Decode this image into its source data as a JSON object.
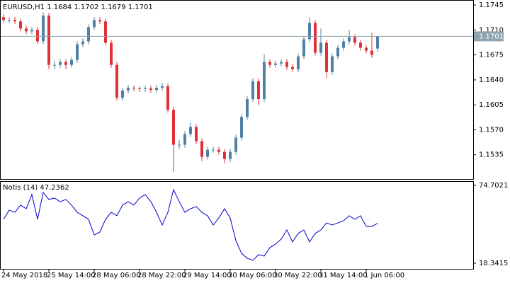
{
  "chart_data": [
    {
      "type": "candlestick",
      "title": "EURUSD,H1  1.1684 1.1702 1.1679 1.1701",
      "categories": [
        "24 May 2018",
        null,
        null,
        null,
        null,
        null,
        null,
        null,
        "25 May 14:00",
        null,
        null,
        null,
        null,
        null,
        null,
        null,
        "28 May 06:00",
        null,
        null,
        null,
        null,
        null,
        null,
        null,
        "28 May 22:00",
        null,
        null,
        null,
        null,
        null,
        null,
        null,
        "29 May 14:00",
        null,
        null,
        null,
        null,
        null,
        null,
        null,
        "30 May 06:00",
        null,
        null,
        null,
        null,
        null,
        null,
        null,
        "30 May 22:00",
        null,
        null,
        null,
        null,
        null,
        null,
        null,
        "31 May 14:00",
        null,
        null,
        null,
        null,
        null,
        null,
        null,
        "1 Jun 06:00",
        null,
        null
      ],
      "open": [
        1.1728,
        1.1724,
        1.1724,
        1.1722,
        1.1712,
        1.1708,
        1.171,
        1.1694,
        1.173,
        1.1661,
        1.1661,
        1.1665,
        1.1661,
        1.1668,
        1.169,
        1.1694,
        1.1714,
        1.1724,
        1.1722,
        1.1692,
        1.1661,
        1.1615,
        1.1625,
        1.1629,
        1.1628,
        1.1627,
        1.1628,
        1.1626,
        1.1629,
        1.1631,
        1.1598,
        1.1549,
        1.1549,
        1.1564,
        1.1574,
        1.1554,
        1.1532,
        1.1542,
        1.1542,
        1.1539,
        1.1529,
        1.1539,
        1.1559,
        1.1588,
        1.1613,
        1.1638,
        1.1613,
        1.1665,
        1.1661,
        1.1663,
        1.1665,
        1.1658,
        1.1655,
        1.1673,
        1.1697,
        1.172,
        1.1678,
        1.1692,
        1.1651,
        1.1673,
        1.1685,
        1.1694,
        1.17,
        1.1692,
        1.1685,
        1.1681,
        1.1684
      ],
      "high": [
        1.1732,
        1.1728,
        1.1728,
        1.1726,
        1.1716,
        1.1714,
        1.1714,
        1.1735,
        1.1734,
        1.1667,
        1.1669,
        1.1669,
        1.1672,
        1.1694,
        1.1698,
        1.1718,
        1.1728,
        1.1728,
        1.1726,
        1.1696,
        1.1665,
        1.1629,
        1.1633,
        1.1632,
        1.1631,
        1.1632,
        1.1632,
        1.1633,
        1.1636,
        1.1635,
        1.1602,
        1.1556,
        1.1568,
        1.158,
        1.1578,
        1.1558,
        1.1546,
        1.1546,
        1.1546,
        1.1543,
        1.1543,
        1.1563,
        1.1592,
        1.1617,
        1.1642,
        1.1642,
        1.1676,
        1.1669,
        1.1667,
        1.1669,
        1.1669,
        1.1662,
        1.1677,
        1.1701,
        1.1728,
        1.1724,
        1.1712,
        1.1696,
        1.1677,
        1.1689,
        1.1698,
        1.171,
        1.1704,
        1.1696,
        1.1689,
        1.1706,
        1.1702
      ],
      "low": [
        1.172,
        1.172,
        1.1718,
        1.1708,
        1.1704,
        1.1704,
        1.169,
        1.169,
        1.1655,
        1.1655,
        1.1657,
        1.1655,
        1.1657,
        1.1664,
        1.1686,
        1.169,
        1.171,
        1.1718,
        1.1688,
        1.1657,
        1.1611,
        1.1611,
        1.1621,
        1.1624,
        1.1623,
        1.1623,
        1.1622,
        1.1622,
        1.1625,
        1.1594,
        1.1511,
        1.1543,
        1.1545,
        1.156,
        1.155,
        1.1526,
        1.1528,
        1.1538,
        1.1535,
        1.1523,
        1.1525,
        1.1535,
        1.1555,
        1.1584,
        1.1609,
        1.1605,
        1.1609,
        1.1657,
        1.1657,
        1.1659,
        1.1654,
        1.1651,
        1.1651,
        1.1669,
        1.1693,
        1.1674,
        1.1674,
        1.1643,
        1.1647,
        1.1669,
        1.1681,
        1.169,
        1.1688,
        1.1681,
        1.1677,
        1.1671,
        1.1679
      ],
      "close": [
        1.1724,
        1.1724,
        1.1722,
        1.1712,
        1.1708,
        1.171,
        1.1694,
        1.173,
        1.1661,
        1.1661,
        1.1665,
        1.1661,
        1.1668,
        1.169,
        1.1694,
        1.1714,
        1.1724,
        1.1722,
        1.1692,
        1.1661,
        1.1615,
        1.1625,
        1.1629,
        1.1628,
        1.1627,
        1.1628,
        1.1626,
        1.1629,
        1.1631,
        1.1598,
        1.1549,
        1.1549,
        1.1564,
        1.1574,
        1.1554,
        1.1532,
        1.1542,
        1.1542,
        1.1539,
        1.1529,
        1.1539,
        1.1559,
        1.1588,
        1.1613,
        1.1638,
        1.1613,
        1.1665,
        1.1661,
        1.1663,
        1.1665,
        1.1658,
        1.1655,
        1.1673,
        1.1697,
        1.172,
        1.1678,
        1.1692,
        1.1651,
        1.1673,
        1.1685,
        1.1694,
        1.17,
        1.1692,
        1.1685,
        1.1681,
        1.1675,
        1.1701
      ],
      "up_color": "#4f81a8",
      "down_color": "#e0303a",
      "price_line": 1.1701,
      "ylim": [
        1.1501,
        1.1752
      ],
      "yticks": [
        1.1745,
        {
          "value": 1.171,
          "label": "1.1710"
        },
        1.1675,
        {
          "value": 1.164,
          "label": "1.1640"
        },
        1.1605,
        {
          "value": 1.157,
          "label": "1.1570"
        },
        1.1535
      ]
    },
    {
      "type": "line",
      "title": "Notis (14) 47.2362",
      "color": "#0000cc",
      "values": [
        50.1,
        56.8,
        55.2,
        60.4,
        57.8,
        68.0,
        50.1,
        69.6,
        64.5,
        65.5,
        62.9,
        64.5,
        60.4,
        55.2,
        52.7,
        50.1,
        38.8,
        40.9,
        50.1,
        55.2,
        52.7,
        60.4,
        62.9,
        60.4,
        65.5,
        68.0,
        62.9,
        55.2,
        46.0,
        55.2,
        71.6,
        62.9,
        55.2,
        57.8,
        59.3,
        55.2,
        52.7,
        46.0,
        51.1,
        57.8,
        51.1,
        34.7,
        25.5,
        21.9,
        20.4,
        24.5,
        23.5,
        29.6,
        32.2,
        35.8,
        42.4,
        33.7,
        39.9,
        42.4,
        33.7,
        39.9,
        42.4,
        47.5,
        46.0,
        47.5,
        49.1,
        52.7,
        50.1,
        52.7,
        45.0,
        45.0,
        47.2
      ],
      "ylim": [
        14.24,
        77.78
      ],
      "yticks": [
        74.7021,
        18.3415
      ]
    }
  ]
}
